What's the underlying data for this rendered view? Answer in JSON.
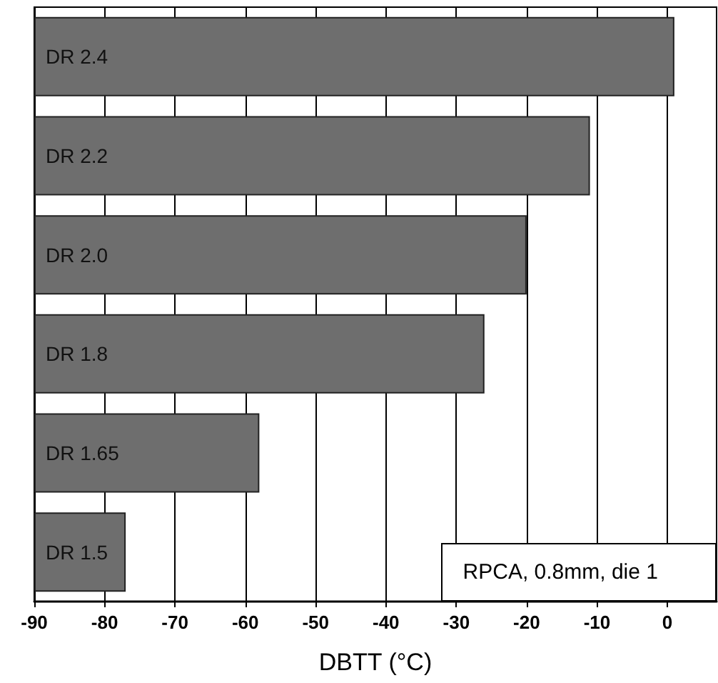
{
  "chart_data": {
    "type": "bar",
    "orientation": "horizontal",
    "xlabel": "DBTT (°C)",
    "categories": [
      "DR 2.4",
      "DR 2.2",
      "DR 2.0",
      "DR 1.8",
      "DR 1.65",
      "DR 1.5"
    ],
    "base": [
      -90,
      -90,
      -90,
      -90,
      -90,
      -90
    ],
    "values": [
      91,
      79,
      70,
      64,
      32,
      13
    ],
    "color": "#6e6e6e",
    "xlim": [
      -90,
      7
    ],
    "xticks": [
      -90,
      -80,
      -70,
      -60,
      -50,
      -40,
      -30,
      -20,
      -10,
      0
    ],
    "grid": "x",
    "annotations": [
      "RPCA, 0.8mm, die 1"
    ]
  }
}
